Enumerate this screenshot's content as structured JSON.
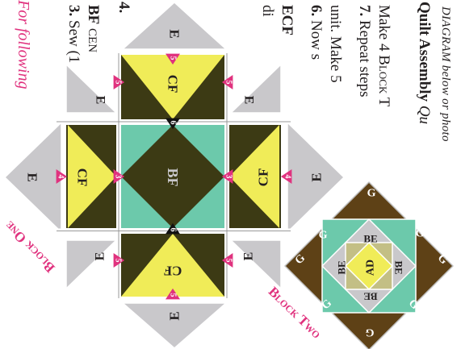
{
  "instructions": {
    "side_note": "For following",
    "step3_num": "3.",
    "step3_text": "Sew (1",
    "step3_sub_bold": "BF",
    "step3_sub_rest": "CEN",
    "step4_num": "4.",
    "step4_frag1": "di",
    "step4_frag2": "ECF",
    "step6_num": "6.",
    "step6_text": "Now s",
    "step6_sub": "unit. Make 5",
    "step7_num": "7.",
    "step7_text": "Repeat steps",
    "step7_sub_a": "Make 4",
    "step7_sub_b": "Block T",
    "assembly_bold": "Quilt Assembly",
    "assembly_rest": "Qu",
    "assembly_sub": "DIAGRAM below or photo"
  },
  "block_one": {
    "title": "Block One",
    "labels": {
      "E": "E",
      "CF": "CF",
      "BF": "BF"
    },
    "seam_markers": {
      "five": "5",
      "four": "4",
      "three": "3",
      "six": "6"
    }
  },
  "block_two": {
    "title": "Block Two",
    "labels": {
      "G": "G",
      "BE": "BE",
      "AD": "AD"
    }
  },
  "colors": {
    "dark_olive": "#3c3a14",
    "yellow": "#f0ec58",
    "teal": "#6cc9ab",
    "gray": "#c9c8cb",
    "brown": "#5e4116",
    "khaki": "#c3bf85",
    "magenta": "#e0327e",
    "ink": "#231f20"
  }
}
